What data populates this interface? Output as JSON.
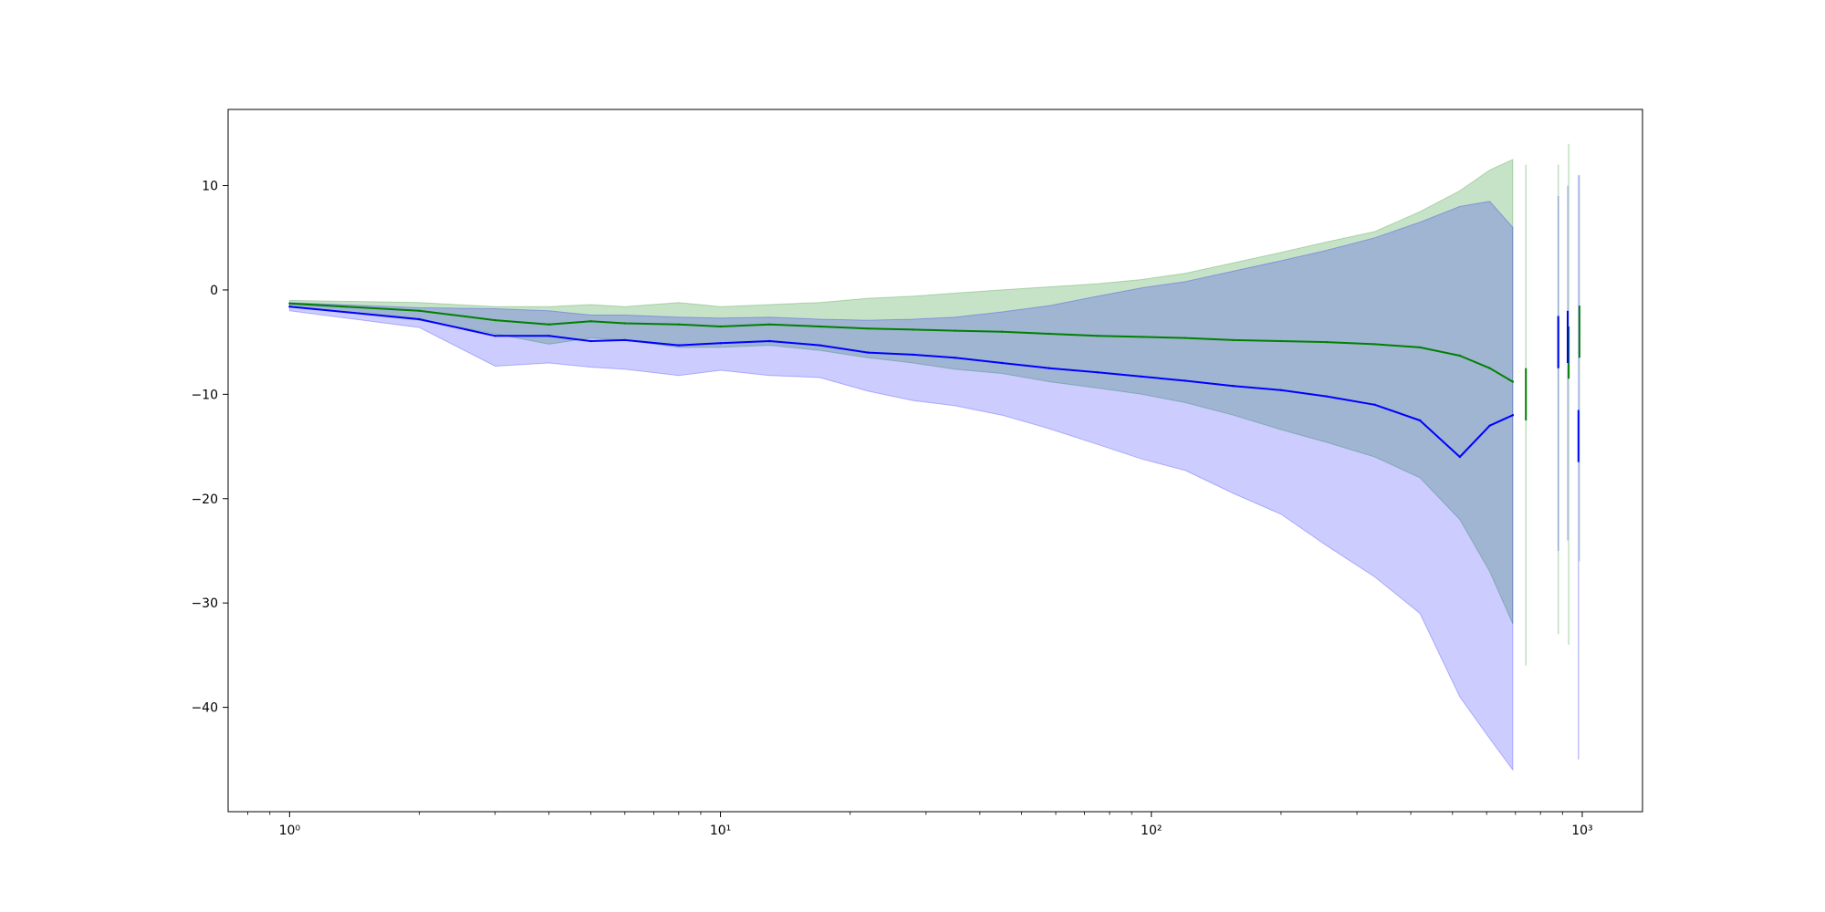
{
  "chart_data": {
    "type": "line",
    "title": "",
    "xlabel": "",
    "ylabel": "",
    "xscale": "log",
    "xlim": [
      0.72,
      1380
    ],
    "ylim": [
      -50,
      17.3
    ],
    "grid": false,
    "legend": "none",
    "x_ticks": [
      {
        "value": 1,
        "label": "10⁰"
      },
      {
        "value": 10,
        "label": "10¹"
      },
      {
        "value": 100,
        "label": "10²"
      },
      {
        "value": 1000,
        "label": "10³"
      }
    ],
    "y_ticks": [
      {
        "value": 10,
        "label": "10"
      },
      {
        "value": 0,
        "label": "0"
      },
      {
        "value": -10,
        "label": "−10"
      },
      {
        "value": -20,
        "label": "−20"
      },
      {
        "value": -30,
        "label": "−30"
      },
      {
        "value": -40,
        "label": "−40"
      }
    ],
    "series": [
      {
        "color": "#008000",
        "band_color": "#008000",
        "band_opacity": 0.22,
        "points": [
          [
            1,
            -1.3,
            -1.0,
            -1.6
          ],
          [
            2,
            -2.0,
            -1.2,
            -2.9
          ],
          [
            3,
            -2.9,
            -1.6,
            -4.2
          ],
          [
            4,
            -3.3,
            -1.6,
            -5.2
          ],
          [
            5,
            -3.0,
            -1.4,
            -4.6
          ],
          [
            6,
            -3.2,
            -1.6,
            -4.8
          ],
          [
            8,
            -3.3,
            -1.2,
            -5.5
          ],
          [
            10,
            -3.5,
            -1.6,
            -5.5
          ],
          [
            13,
            -3.3,
            -1.4,
            -5.3
          ],
          [
            17,
            -3.5,
            -1.2,
            -5.8
          ],
          [
            22,
            -3.7,
            -0.8,
            -6.5
          ],
          [
            28,
            -3.8,
            -0.6,
            -7.0
          ],
          [
            35,
            -3.9,
            -0.3,
            -7.6
          ],
          [
            45,
            -4.0,
            0.0,
            -8.0
          ],
          [
            58,
            -4.2,
            0.3,
            -8.8
          ],
          [
            75,
            -4.4,
            0.6,
            -9.4
          ],
          [
            95,
            -4.5,
            1.0,
            -10.0
          ],
          [
            120,
            -4.6,
            1.6,
            -10.8
          ],
          [
            155,
            -4.8,
            2.6,
            -12.0
          ],
          [
            200,
            -4.9,
            3.6,
            -13.4
          ],
          [
            255,
            -5.0,
            4.6,
            -14.6
          ],
          [
            330,
            -5.2,
            5.6,
            -16.0
          ],
          [
            420,
            -5.5,
            7.5,
            -18.0
          ],
          [
            520,
            -6.3,
            9.5,
            -22.0
          ],
          [
            610,
            -7.5,
            11.5,
            -27.0
          ],
          [
            690,
            -8.8,
            12.5,
            -32.0
          ]
        ]
      },
      {
        "color": "#0000ff",
        "band_color": "#0000ff",
        "band_opacity": 0.2,
        "points": [
          [
            1,
            -1.6,
            -1.2,
            -2.0
          ],
          [
            2,
            -2.8,
            -1.7,
            -3.6
          ],
          [
            3,
            -4.4,
            -1.8,
            -7.3
          ],
          [
            4,
            -4.4,
            -2.0,
            -7.0
          ],
          [
            5,
            -4.9,
            -2.4,
            -7.4
          ],
          [
            6,
            -4.8,
            -2.4,
            -7.6
          ],
          [
            8,
            -5.3,
            -2.6,
            -8.2
          ],
          [
            10,
            -5.1,
            -2.7,
            -7.7
          ],
          [
            13,
            -4.9,
            -2.6,
            -8.2
          ],
          [
            17,
            -5.3,
            -2.8,
            -8.4
          ],
          [
            22,
            -6.0,
            -2.9,
            -9.7
          ],
          [
            28,
            -6.2,
            -2.8,
            -10.6
          ],
          [
            35,
            -6.5,
            -2.6,
            -11.1
          ],
          [
            45,
            -7.0,
            -2.1,
            -12.0
          ],
          [
            58,
            -7.5,
            -1.5,
            -13.3
          ],
          [
            75,
            -7.9,
            -0.6,
            -14.8
          ],
          [
            95,
            -8.3,
            0.2,
            -16.2
          ],
          [
            120,
            -8.7,
            0.8,
            -17.3
          ],
          [
            155,
            -9.2,
            1.8,
            -19.5
          ],
          [
            200,
            -9.6,
            2.8,
            -21.5
          ],
          [
            255,
            -10.2,
            3.8,
            -24.5
          ],
          [
            330,
            -11.0,
            5.0,
            -27.5
          ],
          [
            420,
            -12.5,
            6.5,
            -31.0
          ],
          [
            520,
            -16.0,
            8.0,
            -39.0
          ],
          [
            610,
            -13.0,
            8.5,
            -43.0
          ],
          [
            690,
            -12.0,
            6.0,
            -46.0
          ]
        ]
      }
    ],
    "tail_points": [
      {
        "color": "#008000",
        "x": 740,
        "y": -10.0,
        "hi": 12.0,
        "lo": -36.0
      },
      {
        "color": "#008000",
        "x": 880,
        "y": -5.0,
        "hi": 12.0,
        "lo": -33.0
      },
      {
        "color": "#008000",
        "x": 930,
        "y": -6.0,
        "hi": 14.0,
        "lo": -34.0
      },
      {
        "color": "#008000",
        "x": 985,
        "y": -4.0,
        "hi": 11.0,
        "lo": -26.0
      },
      {
        "color": "#0000ff",
        "x": 880,
        "y": -5.0,
        "hi": 9.0,
        "lo": -25.0
      },
      {
        "color": "#0000ff",
        "x": 925,
        "y": -4.5,
        "hi": 10.0,
        "lo": -24.0
      },
      {
        "color": "#0000ff",
        "x": 980,
        "y": -14.0,
        "hi": 11.0,
        "lo": -45.0
      }
    ]
  }
}
